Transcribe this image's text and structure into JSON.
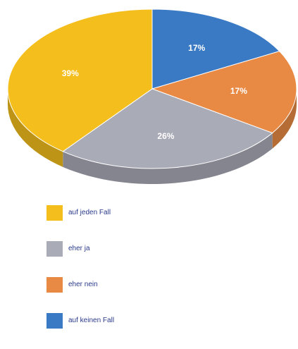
{
  "chart_data": {
    "type": "pie",
    "title": "",
    "categories": [
      "auf jeden Fall",
      "eher ja",
      "eher nein",
      "auf keinen Fall"
    ],
    "values": [
      39,
      26,
      17,
      17
    ],
    "labels": [
      "39%",
      "26%",
      "17%",
      "17%"
    ],
    "colors": [
      "#f4be1c",
      "#a9abb7",
      "#e88a44",
      "#3a7ac4"
    ],
    "style": "3d",
    "legend_position": "bottom-left"
  },
  "legend": {
    "items": [
      {
        "label": "auf jeden Fall",
        "color": "#f4be1c"
      },
      {
        "label": "eher ja",
        "color": "#a9abb7"
      },
      {
        "label": "eher nein",
        "color": "#e88a44"
      },
      {
        "label": "auf keinen Fall",
        "color": "#3a7ac4"
      }
    ]
  }
}
